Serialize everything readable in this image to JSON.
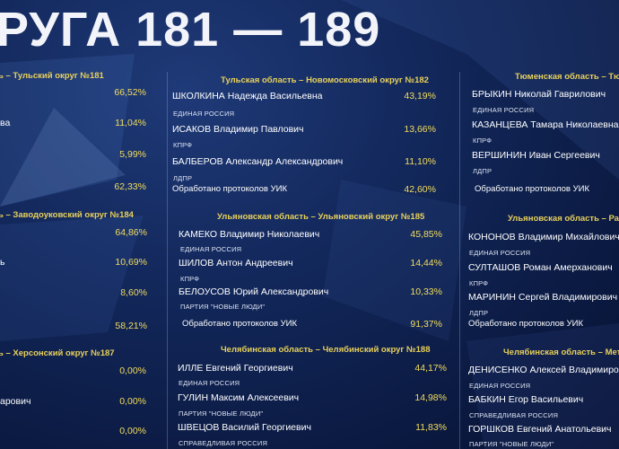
{
  "title": "РУГА 181 — 189",
  "panels": [
    {
      "header": "ь – Тульский округ №181",
      "rows": [
        {
          "name": "",
          "pct": "66,52%",
          "party": ""
        },
        {
          "name": "ва",
          "pct": "11,04%",
          "party": ""
        },
        {
          "name": "",
          "pct": "5,99%",
          "party": ""
        }
      ],
      "processed": {
        "label": "",
        "pct": "62,33%"
      }
    },
    {
      "header": "Тульская область – Новомосковский округ №182",
      "rows": [
        {
          "name": "ШКОЛКИНА Надежда Васильевна",
          "pct": "43,19%",
          "party": "ЕДИНАЯ РОССИЯ"
        },
        {
          "name": "ИСАКОВ Владимир Павлович",
          "pct": "13,66%",
          "party": "КПРФ"
        },
        {
          "name": "БАЛБЕРОВ Александр Александрович",
          "pct": "11,10%",
          "party": "ЛДПР"
        }
      ],
      "processed": {
        "label": "Обработано протоколов УИК",
        "pct": "42,60%"
      }
    },
    {
      "header": "Тюменская область – Тюме",
      "rows": [
        {
          "name": "БРЫКИН Николай Гаврилович",
          "pct": "",
          "party": "ЕДИНАЯ РОССИЯ"
        },
        {
          "name": "КАЗАНЦЕВА Тамара Николаевна",
          "pct": "",
          "party": "КПРФ"
        },
        {
          "name": "ВЕРШИНИН Иван Сергеевич",
          "pct": "",
          "party": "ЛДПР"
        }
      ],
      "processed": {
        "label": "Обработано протоколов УИК",
        "pct": ""
      }
    },
    {
      "header": "ь – Заводоуковский округ №184",
      "rows": [
        {
          "name": "",
          "pct": "64,86%",
          "party": ""
        },
        {
          "name": "ь",
          "pct": "10,69%",
          "party": ""
        },
        {
          "name": "",
          "pct": "8,60%",
          "party": ""
        }
      ],
      "processed": {
        "label": "",
        "pct": "58,21%"
      }
    },
    {
      "header": "Ульяновская область – Ульяновский округ №185",
      "rows": [
        {
          "name": "КАМЕКО Владимир Николаевич",
          "pct": "45,85%",
          "party": "ЕДИНАЯ РОССИЯ"
        },
        {
          "name": "ШИЛОВ Антон Андреевич",
          "pct": "14,44%",
          "party": "КПРФ"
        },
        {
          "name": "БЕЛОУСОВ Юрий Александрович",
          "pct": "10,33%",
          "party": "ПАРТИЯ \"НОВЫЕ ЛЮДИ\""
        }
      ],
      "processed": {
        "label": "Обработано протоколов УИК",
        "pct": "91,37%"
      }
    },
    {
      "header": "Ульяновская область – Радищ",
      "rows": [
        {
          "name": "КОНОНОВ Владимир Михайлович",
          "pct": "",
          "party": "ЕДИНАЯ РОССИЯ"
        },
        {
          "name": "СУЛТАШОВ Роман Амерханович",
          "pct": "",
          "party": "КПРФ"
        },
        {
          "name": "МАРИНИН Сергей Владимирович",
          "pct": "",
          "party": "ЛДПР"
        }
      ],
      "processed": {
        "label": "Обработано протоколов УИК",
        "pct": ""
      }
    },
    {
      "header": "ь – Херсонский округ №187",
      "rows": [
        {
          "name": "",
          "pct": "0,00%",
          "party": ""
        },
        {
          "name": "арович",
          "pct": "0,00%",
          "party": ""
        },
        {
          "name": "",
          "pct": "0,00%",
          "party": ""
        }
      ],
      "processed": {
        "label": "",
        "pct": ""
      }
    },
    {
      "header": "Челябинская область – Челябинский округ №188",
      "rows": [
        {
          "name": "ИЛЛЕ Евгений Георгиевич",
          "pct": "44,17%",
          "party": "ЕДИНАЯ РОССИЯ"
        },
        {
          "name": "ГУЛИН Максим Алексеевич",
          "pct": "14,98%",
          "party": "ПАРТИЯ \"НОВЫЕ ЛЮДИ\""
        },
        {
          "name": "ШВЕЦОВ Василий Георгиевич",
          "pct": "11,83%",
          "party": "СПРАВЕДЛИВАЯ РОССИЯ"
        }
      ],
      "processed": {
        "label": "",
        "pct": ""
      }
    },
    {
      "header": "Челябинская область – Металлу",
      "rows": [
        {
          "name": "ДЕНИСЕНКО Алексей Владимирович",
          "pct": "",
          "party": "ЕДИНАЯ РОССИЯ"
        },
        {
          "name": "БАБКИН Егор Васильевич",
          "pct": "",
          "party": "СПРАВЕДЛИВАЯ РОССИЯ"
        },
        {
          "name": "ГОРШКОВ Евгений Анатольевич",
          "pct": "",
          "party": "ПАРТИЯ \"НОВЫЕ ЛЮДИ\""
        }
      ],
      "processed": {
        "label": "",
        "pct": ""
      }
    }
  ]
}
